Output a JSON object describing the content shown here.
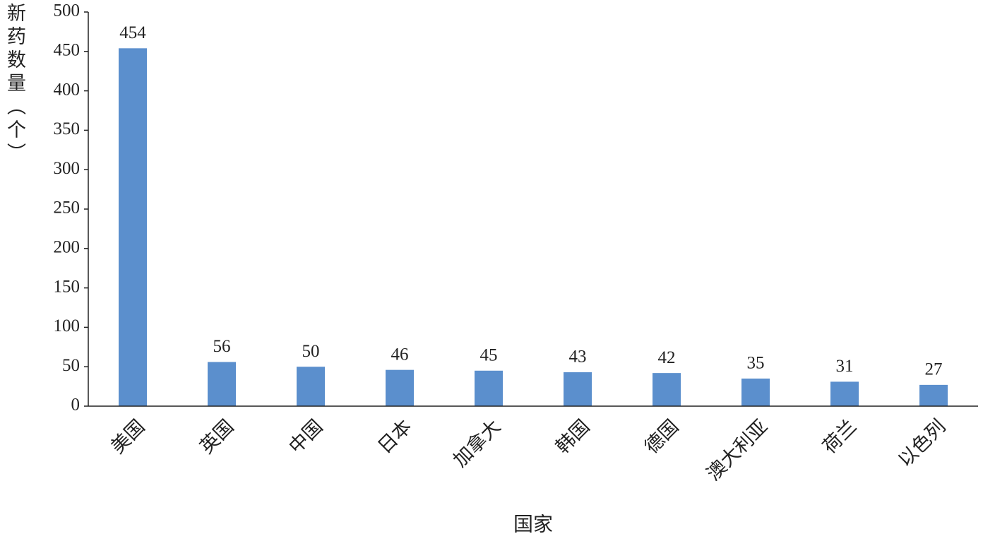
{
  "chart_data": {
    "type": "bar",
    "ylabel": "新药数量（个）",
    "xlabel": "国家",
    "categories": [
      "美国",
      "英国",
      "中国",
      "日本",
      "加拿大",
      "韩国",
      "德国",
      "澳大利亚",
      "荷兰",
      "以色列"
    ],
    "values": [
      454,
      56,
      50,
      46,
      45,
      43,
      42,
      35,
      31,
      27
    ],
    "color": "#5b8fcd",
    "ylim": [
      0,
      500
    ],
    "yticks": [
      0,
      50,
      100,
      150,
      200,
      250,
      300,
      350,
      400,
      450,
      500
    ]
  }
}
